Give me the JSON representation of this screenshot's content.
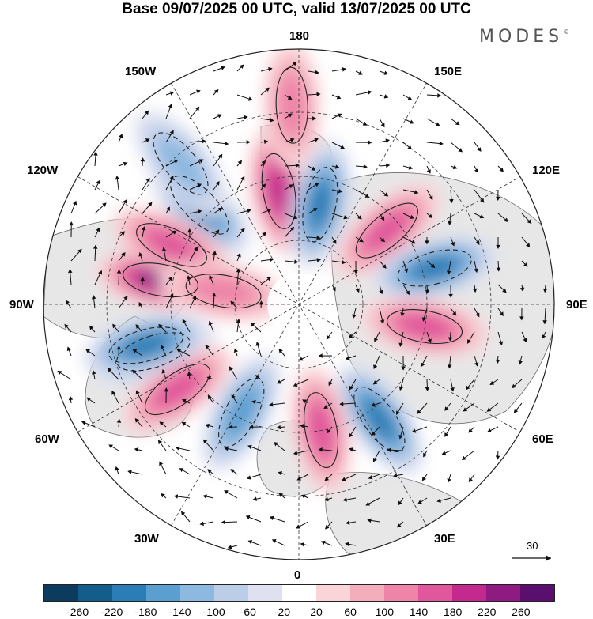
{
  "title": "Base 09/07/2025 00 UTC, valid 13/07/2025 00 UTC",
  "logo": "MODES",
  "logo_mark": "©",
  "longitude_labels": {
    "top": "180",
    "bottom": "0",
    "left": "90W",
    "right": "90E",
    "upper_left_1": "150W",
    "upper_left_2": "120W",
    "upper_right_1": "150E",
    "upper_right_2": "120E",
    "lower_left_1": "60W",
    "lower_left_2": "30W",
    "lower_right_1": "60E",
    "lower_right_2": "30E"
  },
  "reference_vector_label": "30",
  "colorbar": {
    "colors": [
      "#0d3b5e",
      "#135d8a",
      "#2a7db6",
      "#5a9fd0",
      "#8db8e0",
      "#bccde8",
      "#dfe1f0",
      "#ffffff",
      "#f9d4d8",
      "#f4aebb",
      "#ee84a8",
      "#e0579b",
      "#c42a8e",
      "#8e1a82",
      "#5a0f6e"
    ],
    "tick_labels": [
      "-260",
      "-220",
      "-180",
      "-140",
      "-100",
      "-60",
      "-20",
      "20",
      "60",
      "100",
      "140",
      "180",
      "220",
      "260"
    ]
  },
  "map_anomalies": [
    {
      "sign": "neg",
      "level": 6,
      "angle": 198,
      "r": 0.6
    },
    {
      "sign": "pos",
      "level": 6,
      "angle": 170,
      "r": 0.55
    },
    {
      "sign": "neg",
      "level": 5,
      "angle": 135,
      "r": 0.55
    },
    {
      "sign": "pos",
      "level": 5,
      "angle": 100,
      "r": 0.45
    },
    {
      "sign": "neg",
      "level": 5,
      "angle": 78,
      "r": 0.4
    },
    {
      "sign": "pos",
      "level": 4,
      "angle": 40,
      "r": 0.45
    },
    {
      "sign": "neg",
      "level": 5,
      "angle": 15,
      "r": 0.55
    },
    {
      "sign": "pos",
      "level": 4,
      "angle": -10,
      "r": 0.5
    },
    {
      "sign": "neg",
      "level": 5,
      "angle": -55,
      "r": 0.55
    },
    {
      "sign": "pos",
      "level": 4,
      "angle": -80,
      "r": 0.5
    },
    {
      "sign": "neg",
      "level": 4,
      "angle": -118,
      "r": 0.48
    },
    {
      "sign": "pos",
      "level": 4,
      "angle": -145,
      "r": 0.58
    },
    {
      "sign": "neg",
      "level": 5,
      "angle": -165,
      "r": 0.62
    },
    {
      "sign": "pos",
      "level": 4,
      "angle": -205,
      "r": 0.55
    },
    {
      "sign": "pos",
      "level": 3,
      "angle": -190,
      "r": 0.3
    },
    {
      "sign": "neg",
      "level": 3,
      "angle": -230,
      "r": 0.72
    },
    {
      "sign": "pos",
      "level": 3,
      "angle": -268,
      "r": 0.78
    }
  ]
}
